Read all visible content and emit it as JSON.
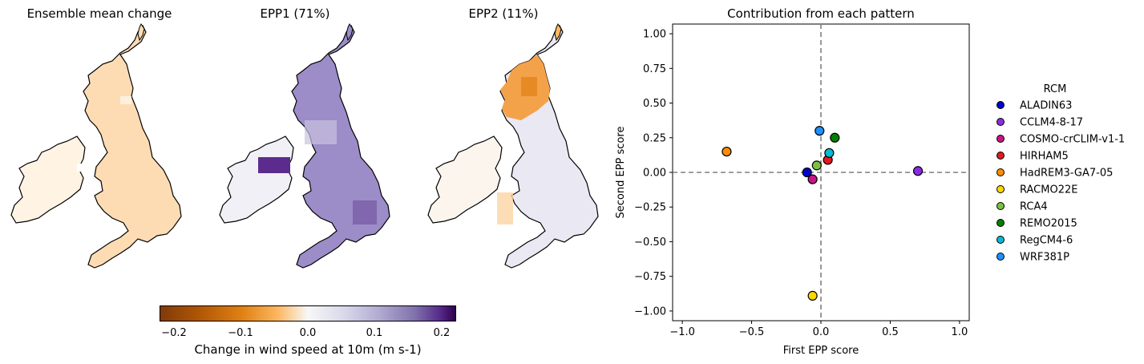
{
  "maps": [
    {
      "title": "Ensemble mean change",
      "fill": "#fddcb4"
    },
    {
      "title": "EPP1 (71%)",
      "fill": "#9c8cc8"
    },
    {
      "title": "EPP2 (11%)",
      "fill": "#eae9f3"
    }
  ],
  "colorbar": {
    "label": "Change in wind speed at 10m (m s-1)",
    "ticks": [
      "−0.2",
      "−0.1",
      "0.0",
      "0.1",
      "0.2"
    ],
    "range": [
      -0.22,
      0.22
    ],
    "colormap": "PuOr"
  },
  "chart_data": {
    "type": "scatter",
    "title": "Contribution from each pattern",
    "xlabel": "First EPP score",
    "ylabel": "Second EPP score",
    "xlim": [
      -1.07,
      1.07
    ],
    "ylim": [
      -1.07,
      1.07
    ],
    "xticks": [
      "−1.0",
      "−0.5",
      "0.0",
      "0.5",
      "1.0"
    ],
    "yticks": [
      "1.00",
      "0.75",
      "0.50",
      "0.25",
      "0.00",
      "−0.25",
      "−0.50",
      "−0.75",
      "−1.00"
    ],
    "ytick_values": [
      1.0,
      0.75,
      0.5,
      0.25,
      0.0,
      -0.25,
      -0.5,
      -0.75,
      -1.0
    ],
    "xtick_values": [
      -1.0,
      -0.5,
      0.0,
      0.5,
      1.0
    ],
    "reference_lines": {
      "x": 0,
      "y": 0
    },
    "legend_title": "RCM",
    "legend_position": "right",
    "series": [
      {
        "name": "ALADIN63",
        "x": -0.1,
        "y": 0.0,
        "color": "#0000cd"
      },
      {
        "name": "CCLM4-8-17",
        "x": 0.7,
        "y": 0.01,
        "color": "#8a2be2"
      },
      {
        "name": "COSMO-crCLIM-v1-1",
        "x": -0.06,
        "y": -0.05,
        "color": "#c71585"
      },
      {
        "name": "HIRHAM5",
        "x": 0.05,
        "y": 0.09,
        "color": "#e31a1c"
      },
      {
        "name": "HadREM3-GA7-05",
        "x": -0.68,
        "y": 0.15,
        "color": "#ff8c00"
      },
      {
        "name": "RACMO22E",
        "x": -0.06,
        "y": -0.89,
        "color": "#ffd700"
      },
      {
        "name": "RCA4",
        "x": -0.03,
        "y": 0.05,
        "color": "#7ac143"
      },
      {
        "name": "REMO2015",
        "x": 0.1,
        "y": 0.25,
        "color": "#008000"
      },
      {
        "name": "RegCM4-6",
        "x": 0.06,
        "y": 0.14,
        "color": "#00bcd4"
      },
      {
        "name": "WRF381P",
        "x": -0.01,
        "y": 0.3,
        "color": "#1e90ff"
      }
    ]
  }
}
